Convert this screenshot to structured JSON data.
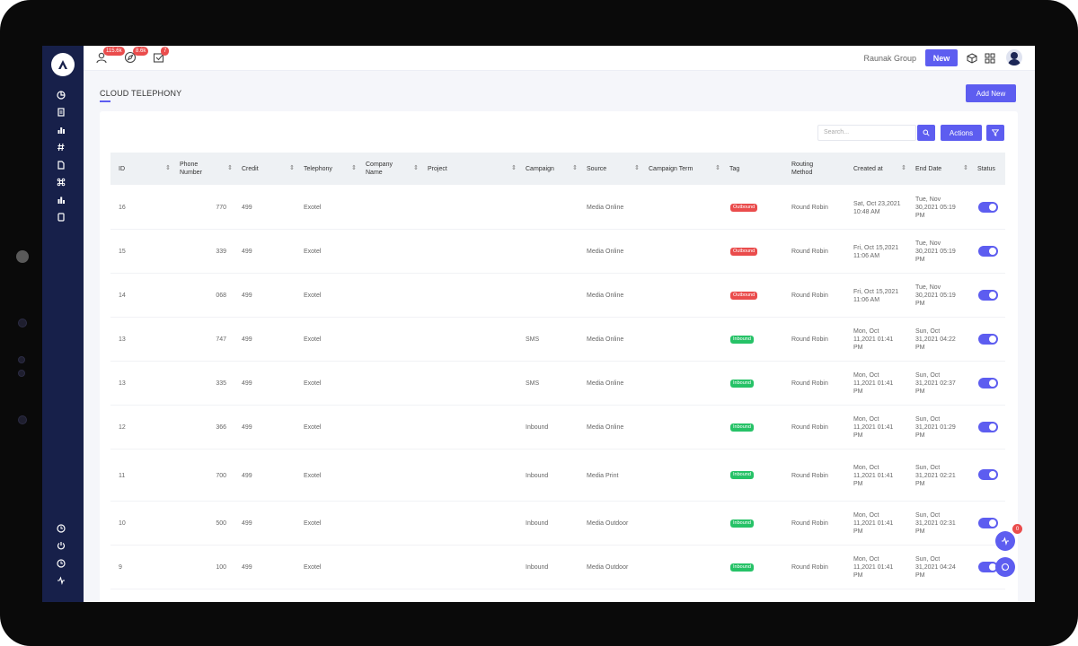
{
  "topbar": {
    "badges": [
      "115.6k",
      "8.6k",
      "7"
    ],
    "group_name": "Raunak Group",
    "new_label": "New"
  },
  "page": {
    "title": "CLOUD TELEPHONY",
    "add_new_label": "Add New"
  },
  "toolbar": {
    "search_placeholder": "Search...",
    "actions_label": "Actions"
  },
  "table": {
    "headers": [
      "ID",
      "Phone Number",
      "Credit",
      "Telephony",
      "Company Name",
      "Project",
      "Campaign",
      "Source",
      "Campaign Term",
      "Tag",
      "Routing Method",
      "Created at",
      "End Date",
      "Status"
    ],
    "rows": [
      {
        "id": "16",
        "phone": "770",
        "credit": "499",
        "telephony": "Exotel",
        "campaign": "",
        "source": "Media Online",
        "tag": "Outbound",
        "routing": "Round Robin",
        "created": "Sat, Oct 23,2021 10:48 AM",
        "end": "Tue, Nov 30,2021 05:19 PM"
      },
      {
        "id": "15",
        "phone": "339",
        "credit": "499",
        "telephony": "Exotel",
        "campaign": "",
        "source": "Media Online",
        "tag": "Outbound",
        "routing": "Round Robin",
        "created": "Fri, Oct 15,2021 11:06 AM",
        "end": "Tue, Nov 30,2021 05:19 PM"
      },
      {
        "id": "14",
        "phone": "068",
        "credit": "499",
        "telephony": "Exotel",
        "campaign": "",
        "source": "Media Online",
        "tag": "Outbound",
        "routing": "Round Robin",
        "created": "Fri, Oct 15,2021 11:06 AM",
        "end": "Tue, Nov 30,2021 05:19 PM"
      },
      {
        "id": "13",
        "phone": "747",
        "credit": "499",
        "telephony": "Exotel",
        "campaign": "SMS",
        "source": "Media Online",
        "tag": "Inbound",
        "routing": "Round Robin",
        "created": "Mon, Oct 11,2021 01:41 PM",
        "end": "Sun, Oct 31,2021 04:22 PM"
      },
      {
        "id": "13",
        "phone": "335",
        "credit": "499",
        "telephony": "Exotel",
        "campaign": "SMS",
        "source": "Media Online",
        "tag": "Inbound",
        "routing": "Round Robin",
        "created": "Mon, Oct 11,2021 01:41 PM",
        "end": "Sun, Oct 31,2021 02:37 PM"
      },
      {
        "id": "12",
        "phone": "366",
        "credit": "499",
        "telephony": "Exotel",
        "campaign": "Inbound",
        "source": "Media Online",
        "tag": "Inbound",
        "routing": "Round Robin",
        "created": "Mon, Oct 11,2021 01:41 PM",
        "end": "Sun, Oct 31,2021 01:29 PM"
      },
      {
        "id": "11",
        "phone": "700",
        "credit": "499",
        "telephony": "Exotel",
        "campaign": "Inbound",
        "source": "Media Print",
        "tag": "Inbound",
        "routing": "Round Robin",
        "created": "Mon, Oct 11,2021 01:41 PM",
        "end": "Sun, Oct 31,2021 02:21 PM"
      },
      {
        "id": "10",
        "phone": "500",
        "credit": "499",
        "telephony": "Exotel",
        "campaign": "Inbound",
        "source": "Media Outdoor",
        "tag": "Inbound",
        "routing": "Round Robin",
        "created": "Mon, Oct 11,2021 01:41 PM",
        "end": "Sun, Oct 31,2021 02:31 PM"
      },
      {
        "id": "9",
        "phone": "100",
        "credit": "499",
        "telephony": "Exotel",
        "campaign": "Inbound",
        "source": "Media Outdoor",
        "tag": "Inbound",
        "routing": "Round Robin",
        "created": "Mon, Oct 11,2021 01:41 PM",
        "end": "Sun, Oct 31,2021 04:24 PM"
      }
    ]
  },
  "fab": {
    "badge": "0"
  },
  "colors": {
    "accent": "#5d5df0",
    "sidebar": "#17204a",
    "outbound": "#ea4c4c",
    "inbound": "#26c267"
  }
}
